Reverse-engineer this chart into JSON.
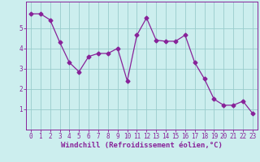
{
  "x": [
    0,
    1,
    2,
    3,
    4,
    5,
    6,
    7,
    8,
    9,
    10,
    11,
    12,
    13,
    14,
    15,
    16,
    17,
    18,
    19,
    20,
    21,
    22,
    23
  ],
  "y": [
    5.7,
    5.7,
    5.4,
    4.3,
    3.3,
    2.85,
    3.6,
    3.75,
    3.75,
    4.0,
    2.4,
    4.65,
    5.5,
    4.4,
    4.35,
    4.35,
    4.65,
    3.3,
    2.5,
    1.5,
    1.2,
    1.2,
    1.4,
    0.8
  ],
  "line_color": "#882299",
  "marker": "D",
  "marker_size": 2.5,
  "bg_color": "#cceeee",
  "grid_color": "#99cccc",
  "xlabel": "Windchill (Refroidissement éolien,°C)",
  "ylabel": "",
  "title": "",
  "xlim": [
    -0.5,
    23.5
  ],
  "ylim": [
    0,
    6.3
  ],
  "yticks": [
    1,
    2,
    3,
    4,
    5
  ],
  "xticks": [
    0,
    1,
    2,
    3,
    4,
    5,
    6,
    7,
    8,
    9,
    10,
    11,
    12,
    13,
    14,
    15,
    16,
    17,
    18,
    19,
    20,
    21,
    22,
    23
  ],
  "font_color": "#882299",
  "font_size": 5.5,
  "xlabel_fontsize": 6.5
}
